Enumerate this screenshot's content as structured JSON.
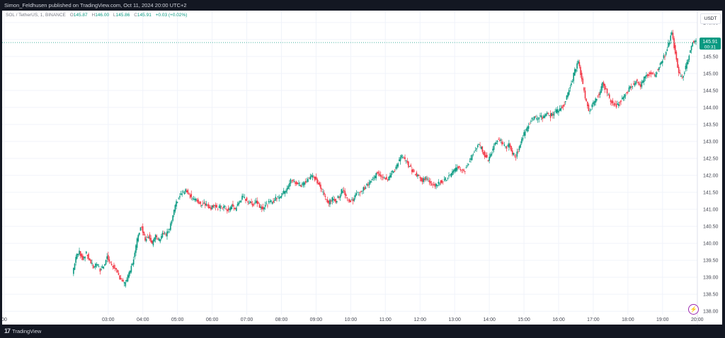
{
  "header": {
    "publish_line": "Simon_Feldhusen published on TradingView.com, Oct 11, 2024 20:00 UTC+2"
  },
  "legend": {
    "symbol": "SOL / TetherUS, 1, BINANCE",
    "o_label": "O",
    "o_value": "145.87",
    "h_label": "H",
    "h_value": "146.00",
    "l_label": "L",
    "l_value": "145.86",
    "c_label": "C",
    "c_value": "145.91",
    "change": "+0.03 (+0.02%)"
  },
  "currency": "USDT",
  "price_badge": {
    "price": "145.91",
    "countdown": "00:31"
  },
  "footer": {
    "logo_text": "TradingView"
  },
  "colors": {
    "up": "#089981",
    "down": "#f23645",
    "bg": "#ffffff",
    "frame": "#131722",
    "alert": "#9c27b0"
  },
  "icons": {
    "alert": "lightning-icon",
    "logo": "tradingview-logo-icon"
  },
  "chart_data": {
    "type": "candlestick",
    "title": "SOL / TetherUS, 1, BINANCE",
    "xlabel": "",
    "ylabel": "",
    "ylim": [
      137.9,
      146.85
    ],
    "xlim": [
      "00:00",
      "20:04"
    ],
    "x_ticks": [
      "00",
      "03:00",
      "04:00",
      "05:00",
      "06:00",
      "07:00",
      "08:00",
      "09:00",
      "10:00",
      "11:00",
      "12:00",
      "13:00",
      "14:00",
      "15:00",
      "16:00",
      "17:00",
      "18:00",
      "19:00",
      "20:00"
    ],
    "x_tick_positions": [
      "00:00",
      "03:00",
      "04:00",
      "05:00",
      "06:00",
      "07:00",
      "08:00",
      "09:00",
      "10:00",
      "11:00",
      "12:00",
      "13:00",
      "14:00",
      "15:00",
      "16:00",
      "17:00",
      "18:00",
      "19:00",
      "20:00"
    ],
    "y_ticks": [
      138.0,
      138.5,
      139.0,
      139.5,
      140.0,
      140.5,
      141.0,
      141.5,
      142.0,
      142.5,
      143.0,
      143.5,
      144.0,
      144.5,
      145.0,
      145.5,
      146.0,
      146.5
    ],
    "last_price": 145.91,
    "price_line": 145.91,
    "series": [
      {
        "name": "SOL/USDT",
        "points": [
          [
            "02:00",
            139.1
          ],
          [
            "02:06",
            139.6
          ],
          [
            "02:12",
            139.75
          ],
          [
            "02:18",
            139.55
          ],
          [
            "02:24",
            139.7
          ],
          [
            "02:30",
            139.5
          ],
          [
            "02:36",
            139.3
          ],
          [
            "02:42",
            139.4
          ],
          [
            "02:48",
            139.2
          ],
          [
            "02:54",
            139.35
          ],
          [
            "03:00",
            139.6
          ],
          [
            "03:06",
            139.4
          ],
          [
            "03:12",
            139.3
          ],
          [
            "03:18",
            139.1
          ],
          [
            "03:24",
            138.95
          ],
          [
            "03:30",
            138.8
          ],
          [
            "03:36",
            139.0
          ],
          [
            "03:42",
            139.3
          ],
          [
            "03:48",
            139.7
          ],
          [
            "03:54",
            140.3
          ],
          [
            "04:00",
            140.5
          ],
          [
            "04:06",
            140.1
          ],
          [
            "04:12",
            140.25
          ],
          [
            "04:18",
            140.0
          ],
          [
            "04:24",
            140.2
          ],
          [
            "04:30",
            140.1
          ],
          [
            "04:36",
            140.3
          ],
          [
            "04:42",
            140.25
          ],
          [
            "04:48",
            140.4
          ],
          [
            "04:54",
            140.8
          ],
          [
            "05:00",
            141.2
          ],
          [
            "05:06",
            141.4
          ],
          [
            "05:12",
            141.5
          ],
          [
            "05:18",
            141.55
          ],
          [
            "05:24",
            141.4
          ],
          [
            "05:30",
            141.3
          ],
          [
            "05:36",
            141.25
          ],
          [
            "05:42",
            141.15
          ],
          [
            "05:48",
            141.2
          ],
          [
            "05:54",
            141.1
          ],
          [
            "06:00",
            141.05
          ],
          [
            "06:06",
            141.15
          ],
          [
            "06:12",
            141.0
          ],
          [
            "06:18",
            141.1
          ],
          [
            "06:24",
            141.05
          ],
          [
            "06:30",
            140.95
          ],
          [
            "06:36",
            141.1
          ],
          [
            "06:42",
            141.0
          ],
          [
            "06:48",
            141.2
          ],
          [
            "06:54",
            141.35
          ],
          [
            "07:00",
            141.3
          ],
          [
            "07:06",
            141.2
          ],
          [
            "07:12",
            141.15
          ],
          [
            "07:18",
            141.25
          ],
          [
            "07:24",
            141.1
          ],
          [
            "07:30",
            141.05
          ],
          [
            "07:36",
            141.15
          ],
          [
            "07:42",
            141.2
          ],
          [
            "07:48",
            141.25
          ],
          [
            "07:54",
            141.35
          ],
          [
            "08:00",
            141.4
          ],
          [
            "08:06",
            141.5
          ],
          [
            "08:12",
            141.65
          ],
          [
            "08:18",
            141.85
          ],
          [
            "08:24",
            141.8
          ],
          [
            "08:30",
            141.75
          ],
          [
            "08:36",
            141.7
          ],
          [
            "08:42",
            141.8
          ],
          [
            "08:48",
            141.9
          ],
          [
            "08:54",
            142.0
          ],
          [
            "09:00",
            141.9
          ],
          [
            "09:06",
            141.75
          ],
          [
            "09:12",
            141.55
          ],
          [
            "09:18",
            141.35
          ],
          [
            "09:24",
            141.2
          ],
          [
            "09:30",
            141.3
          ],
          [
            "09:36",
            141.25
          ],
          [
            "09:42",
            141.4
          ],
          [
            "09:48",
            141.6
          ],
          [
            "09:54",
            141.4
          ],
          [
            "10:00",
            141.2
          ],
          [
            "10:06",
            141.3
          ],
          [
            "10:12",
            141.45
          ],
          [
            "10:18",
            141.5
          ],
          [
            "10:24",
            141.6
          ],
          [
            "10:30",
            141.7
          ],
          [
            "10:36",
            141.8
          ],
          [
            "10:42",
            141.9
          ],
          [
            "10:48",
            142.1
          ],
          [
            "10:54",
            142.0
          ],
          [
            "11:00",
            141.95
          ],
          [
            "11:06",
            141.9
          ],
          [
            "11:12",
            142.05
          ],
          [
            "11:18",
            142.15
          ],
          [
            "11:24",
            142.4
          ],
          [
            "11:30",
            142.55
          ],
          [
            "11:36",
            142.45
          ],
          [
            "11:42",
            142.3
          ],
          [
            "11:48",
            142.15
          ],
          [
            "11:54",
            142.05
          ],
          [
            "12:00",
            141.95
          ],
          [
            "12:06",
            141.85
          ],
          [
            "12:12",
            141.95
          ],
          [
            "12:18",
            141.8
          ],
          [
            "12:24",
            141.75
          ],
          [
            "12:30",
            141.7
          ],
          [
            "12:36",
            141.8
          ],
          [
            "12:42",
            141.85
          ],
          [
            "12:48",
            141.9
          ],
          [
            "12:54",
            142.0
          ],
          [
            "13:00",
            142.1
          ],
          [
            "13:06",
            142.25
          ],
          [
            "13:12",
            142.2
          ],
          [
            "13:18",
            142.1
          ],
          [
            "13:24",
            142.3
          ],
          [
            "13:30",
            142.5
          ],
          [
            "13:36",
            142.7
          ],
          [
            "13:42",
            142.9
          ],
          [
            "13:48",
            142.8
          ],
          [
            "13:54",
            142.6
          ],
          [
            "14:00",
            142.45
          ],
          [
            "14:06",
            142.7
          ],
          [
            "14:12",
            142.95
          ],
          [
            "14:18",
            143.1
          ],
          [
            "14:24",
            142.95
          ],
          [
            "14:30",
            142.8
          ],
          [
            "14:36",
            142.9
          ],
          [
            "14:42",
            142.65
          ],
          [
            "14:48",
            142.55
          ],
          [
            "14:54",
            142.85
          ],
          [
            "15:00",
            143.15
          ],
          [
            "15:06",
            143.35
          ],
          [
            "15:12",
            143.55
          ],
          [
            "15:18",
            143.7
          ],
          [
            "15:24",
            143.65
          ],
          [
            "15:30",
            143.75
          ],
          [
            "15:36",
            143.7
          ],
          [
            "15:42",
            143.8
          ],
          [
            "15:48",
            143.75
          ],
          [
            "15:54",
            143.85
          ],
          [
            "16:00",
            143.9
          ],
          [
            "16:06",
            144.0
          ],
          [
            "16:12",
            144.1
          ],
          [
            "16:18",
            144.4
          ],
          [
            "16:24",
            144.7
          ],
          [
            "16:30",
            145.1
          ],
          [
            "16:36",
            145.35
          ],
          [
            "16:42",
            144.8
          ],
          [
            "16:48",
            144.3
          ],
          [
            "16:54",
            143.9
          ],
          [
            "17:00",
            144.05
          ],
          [
            "17:06",
            144.25
          ],
          [
            "17:12",
            144.4
          ],
          [
            "17:18",
            144.7
          ],
          [
            "17:24",
            144.5
          ],
          [
            "17:30",
            144.25
          ],
          [
            "17:36",
            144.1
          ],
          [
            "17:42",
            144.05
          ],
          [
            "17:48",
            144.15
          ],
          [
            "17:54",
            144.3
          ],
          [
            "18:00",
            144.45
          ],
          [
            "18:06",
            144.6
          ],
          [
            "18:12",
            144.7
          ],
          [
            "18:18",
            144.8
          ],
          [
            "18:24",
            144.65
          ],
          [
            "18:30",
            144.85
          ],
          [
            "18:36",
            144.95
          ],
          [
            "18:42",
            145.0
          ],
          [
            "18:48",
            144.95
          ],
          [
            "18:54",
            145.15
          ],
          [
            "19:00",
            145.35
          ],
          [
            "19:06",
            145.55
          ],
          [
            "19:12",
            145.85
          ],
          [
            "19:18",
            146.2
          ],
          [
            "19:24",
            145.6
          ],
          [
            "19:30",
            145.0
          ],
          [
            "19:36",
            144.85
          ],
          [
            "19:42",
            145.2
          ],
          [
            "19:48",
            145.55
          ],
          [
            "19:54",
            145.9
          ],
          [
            "20:00",
            145.91
          ]
        ]
      }
    ]
  }
}
